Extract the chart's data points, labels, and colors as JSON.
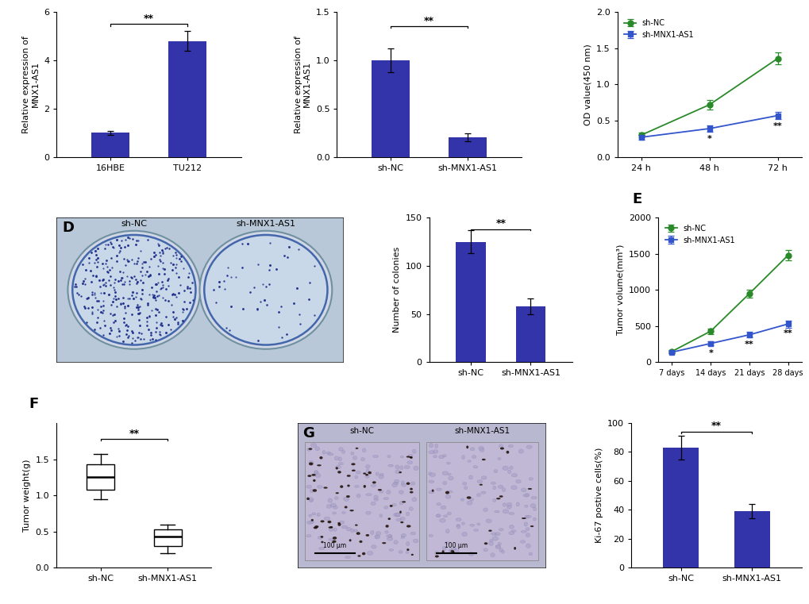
{
  "bar_color": "#3333aa",
  "green_color": "#2a8a2a",
  "blue_line_color": "#3355cc",
  "panelA": {
    "categories": [
      "16HBE",
      "TU212"
    ],
    "values": [
      1.0,
      4.8
    ],
    "errors": [
      0.08,
      0.42
    ],
    "ylabel": "Relative expression of\nMNX1-AS1",
    "ylim": [
      0,
      6
    ],
    "yticks": [
      0,
      2,
      4,
      6
    ],
    "sig": "**"
  },
  "panelB": {
    "categories": [
      "sh-NC",
      "sh-MNX1-AS1"
    ],
    "values": [
      1.0,
      0.2
    ],
    "errors": [
      0.12,
      0.04
    ],
    "ylabel": "Relative expression of\nMNX1-AS1",
    "ylim": [
      0.0,
      1.5
    ],
    "yticks": [
      0.0,
      0.5,
      1.0,
      1.5
    ],
    "sig": "**"
  },
  "panelC": {
    "timepoints": [
      "24 h",
      "48 h",
      "72 h"
    ],
    "nc_values": [
      0.3,
      0.72,
      1.36
    ],
    "nc_errors": [
      0.03,
      0.07,
      0.08
    ],
    "sh_values": [
      0.27,
      0.39,
      0.57
    ],
    "sh_errors": [
      0.03,
      0.04,
      0.05
    ],
    "ylabel": "OD value(450 nm)",
    "ylim": [
      0.0,
      2.0
    ],
    "yticks": [
      0.0,
      0.5,
      1.0,
      1.5,
      2.0
    ],
    "sigs_48h": "*",
    "sigs_72h": "**"
  },
  "panelD_bar": {
    "categories": [
      "sh-NC",
      "sh-MNX1-AS1"
    ],
    "values": [
      125,
      58
    ],
    "errors": [
      12,
      8
    ],
    "ylabel": "Number of colonies",
    "ylim": [
      0,
      150
    ],
    "yticks": [
      0,
      50,
      100,
      150
    ],
    "sig": "**"
  },
  "panelE": {
    "timepoints": [
      "7 days",
      "14 days",
      "21 days",
      "28 days"
    ],
    "nc_values": [
      150,
      430,
      950,
      1480
    ],
    "nc_errors": [
      20,
      40,
      55,
      70
    ],
    "sh_values": [
      140,
      260,
      380,
      530
    ],
    "sh_errors": [
      18,
      28,
      38,
      48
    ],
    "ylabel": "Tumor volume(mm³)",
    "ylim": [
      0,
      2000
    ],
    "yticks": [
      0,
      500,
      1000,
      1500,
      2000
    ],
    "sigs": [
      "*",
      "**",
      "**"
    ]
  },
  "panelF": {
    "nc_median": 1.25,
    "nc_q1": 1.08,
    "nc_q3": 1.43,
    "nc_whislo": 0.95,
    "nc_whishi": 1.57,
    "sh_median": 0.43,
    "sh_q1": 0.3,
    "sh_q3": 0.53,
    "sh_whislo": 0.2,
    "sh_whishi": 0.6,
    "ylabel": "Tumor weight(g)",
    "ylim": [
      0.0,
      2.0
    ],
    "yticks": [
      0.0,
      0.5,
      1.0,
      1.5
    ],
    "sig": "**",
    "categories": [
      "sh-NC",
      "sh-MNX1-AS1"
    ]
  },
  "panelG_bar": {
    "categories": [
      "sh-NC",
      "sh-MNX1-AS1"
    ],
    "values": [
      83,
      39
    ],
    "errors": [
      8,
      5
    ],
    "ylabel": "Ki-67 postive cells(%)",
    "ylim": [
      0,
      100
    ],
    "yticks": [
      0,
      20,
      40,
      60,
      80,
      100
    ],
    "sig": "**"
  }
}
